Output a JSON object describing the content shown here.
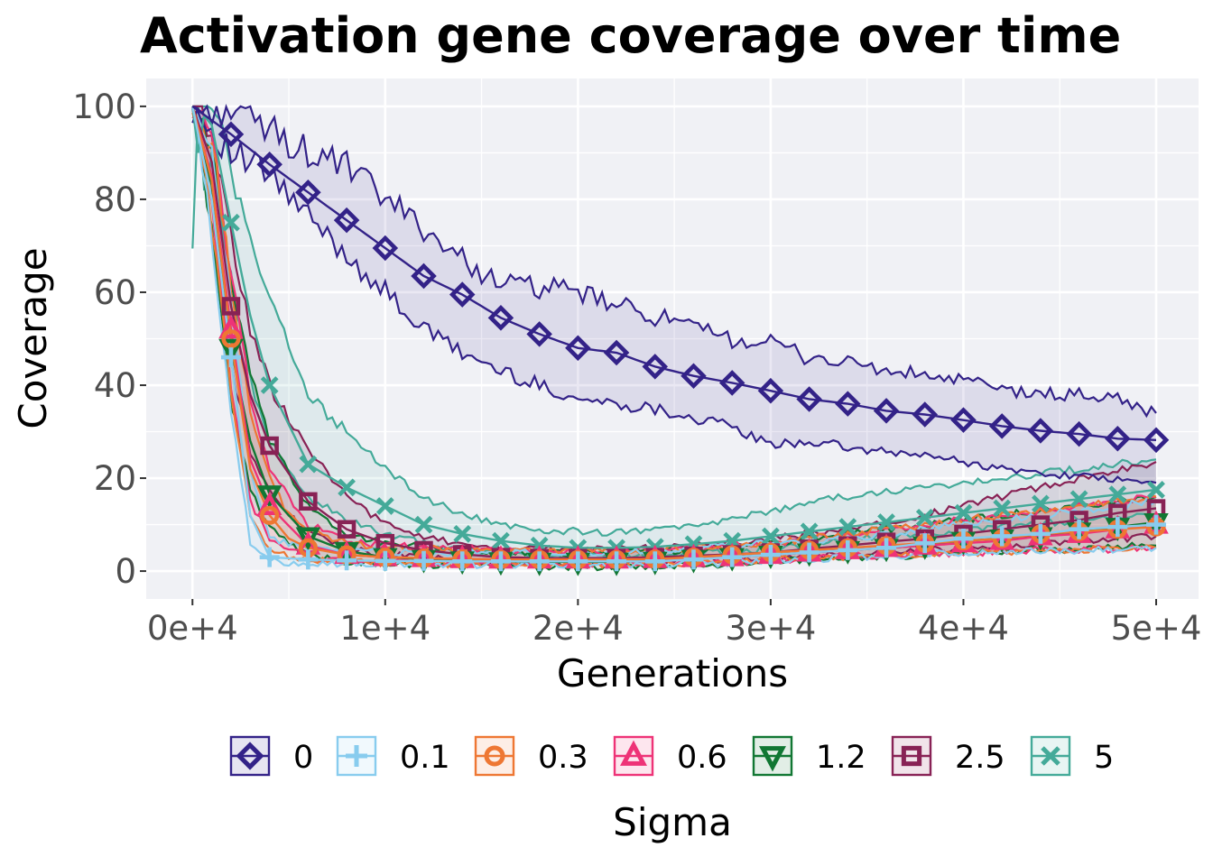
{
  "chart_data": {
    "type": "line",
    "title": "Activation gene coverage over time",
    "xlabel": "Generations",
    "ylabel": "Coverage",
    "xlim": [
      -2400,
      52200
    ],
    "ylim": [
      -6,
      106
    ],
    "x_ticks": [
      0,
      10000,
      20000,
      30000,
      40000,
      50000
    ],
    "x_tick_labels": [
      "0e+4",
      "1e+4",
      "2e+4",
      "3e+4",
      "4e+4",
      "5e+4"
    ],
    "y_ticks": [
      0,
      20,
      40,
      60,
      80,
      100
    ],
    "y_tick_labels": [
      "0",
      "20",
      "40",
      "60",
      "80",
      "100"
    ],
    "grid": true,
    "legend": {
      "title": "Sigma",
      "placement": "bottom"
    },
    "series": [
      {
        "name": "0",
        "color": "#332288",
        "marker": "diamond",
        "x": [
          0,
          2000,
          4000,
          6000,
          8000,
          10000,
          12000,
          14000,
          16000,
          18000,
          20000,
          22000,
          24000,
          26000,
          28000,
          30000,
          32000,
          34000,
          36000,
          38000,
          40000,
          42000,
          44000,
          46000,
          48000,
          50000
        ],
        "median": [
          100,
          94,
          87.5,
          81.5,
          75.5,
          69.5,
          63.5,
          59.5,
          54.5,
          51,
          48,
          47,
          44,
          42,
          40.5,
          38.8,
          37,
          36,
          34.5,
          33.7,
          32.5,
          31.2,
          30.2,
          29.5,
          28.5,
          28.2
        ],
        "lower": [
          100,
          90,
          85,
          76,
          68,
          60,
          52,
          47,
          43,
          40,
          37,
          36,
          35,
          33,
          31,
          27,
          28,
          26.5,
          25.5,
          25,
          23.5,
          22,
          21,
          20.5,
          19.5,
          19
        ],
        "upper": [
          100,
          99.5,
          95,
          90,
          87,
          80,
          74,
          67,
          62,
          61,
          60,
          57,
          55,
          52,
          50,
          49,
          46,
          45,
          43,
          42,
          41,
          39,
          38,
          38,
          37,
          34
        ]
      },
      {
        "name": "0.1",
        "color": "#88ccee",
        "marker": "plus",
        "x": [
          0,
          1000,
          2000,
          3000,
          4000,
          6000,
          8000,
          10000,
          12000,
          14000,
          16000,
          18000,
          20000,
          22000,
          24000,
          26000,
          28000,
          30000,
          32000,
          34000,
          36000,
          38000,
          40000,
          42000,
          44000,
          46000,
          48000,
          50000
        ],
        "median": [
          100,
          80,
          46,
          12,
          3,
          2.5,
          2.3,
          2.2,
          2.2,
          2.1,
          2.1,
          2.1,
          2.1,
          2.1,
          2.1,
          2.5,
          3,
          3.5,
          4,
          4.5,
          5,
          6,
          7,
          7.5,
          8,
          9,
          9.5,
          10
        ],
        "lower": [
          100,
          72,
          35,
          6,
          2,
          1.8,
          1.6,
          1.5,
          1.5,
          1.4,
          1.4,
          1.4,
          1.4,
          1.4,
          1.4,
          1.5,
          1.8,
          2.2,
          2.6,
          3,
          3.3,
          3.6,
          3.8,
          4,
          4.2,
          4.5,
          4.8,
          5
        ],
        "upper": [
          100,
          88,
          58,
          22,
          7,
          5,
          4.5,
          4.2,
          4,
          4,
          4,
          4,
          4,
          4,
          4.2,
          5,
          5.5,
          6,
          6.5,
          7,
          8,
          9,
          10,
          11,
          12,
          13,
          14,
          15
        ]
      },
      {
        "name": "0.3",
        "color": "#ee7733",
        "marker": "circle",
        "x": [
          0,
          1000,
          2000,
          3000,
          4000,
          5000,
          6000,
          8000,
          10000,
          12000,
          14000,
          16000,
          18000,
          20000,
          22000,
          24000,
          26000,
          28000,
          30000,
          32000,
          34000,
          36000,
          38000,
          40000,
          42000,
          44000,
          46000,
          48000,
          50000
        ],
        "median": [
          100,
          84,
          50,
          22,
          12,
          7,
          5,
          3.5,
          3,
          2.8,
          2.6,
          2.5,
          2.5,
          2.5,
          2.5,
          2.6,
          3,
          3.5,
          4,
          4.5,
          5,
          5.5,
          6,
          6.5,
          7,
          8,
          8.5,
          9,
          9.5
        ],
        "lower": [
          100,
          76,
          38,
          12,
          5,
          3,
          2.5,
          2,
          1.8,
          1.6,
          1.5,
          1.5,
          1.5,
          1.5,
          1.5,
          1.6,
          1.8,
          2,
          2.4,
          2.8,
          3.2,
          3.5,
          3.8,
          4,
          4.2,
          4.4,
          4.6,
          4.8,
          5
        ],
        "upper": [
          100,
          92,
          62,
          35,
          20,
          12,
          9,
          6,
          5,
          4.8,
          4.5,
          4.4,
          4.3,
          4.3,
          4.3,
          4.5,
          5,
          5.5,
          6,
          7,
          8,
          9,
          10,
          11,
          12,
          13,
          14,
          15,
          16
        ]
      },
      {
        "name": "0.6",
        "color": "#ee3377",
        "marker": "triangle-up",
        "x": [
          0,
          1000,
          2000,
          3000,
          4000,
          6000,
          8000,
          10000,
          12000,
          14000,
          16000,
          18000,
          20000,
          22000,
          24000,
          26000,
          28000,
          30000,
          32000,
          34000,
          36000,
          38000,
          40000,
          42000,
          44000,
          46000,
          48000,
          50000
        ],
        "median": [
          100,
          85,
          52,
          24,
          14,
          5.5,
          3.5,
          3,
          2.8,
          2.6,
          2.5,
          2.5,
          2.5,
          2.5,
          2.6,
          2.8,
          3,
          3.5,
          4,
          4.5,
          5,
          5.5,
          6,
          6.5,
          7.5,
          8,
          9,
          10
        ],
        "lower": [
          100,
          78,
          40,
          15,
          7,
          3,
          2.2,
          2,
          1.8,
          1.6,
          1.5,
          1.5,
          1.5,
          1.5,
          1.6,
          1.8,
          2,
          2.4,
          2.8,
          3.2,
          3.5,
          3.8,
          4,
          4.2,
          4.4,
          4.6,
          4.8,
          5
        ],
        "upper": [
          100,
          93,
          64,
          38,
          22,
          10,
          6.5,
          5.5,
          5,
          4.8,
          4.5,
          4.4,
          4.3,
          4.3,
          4.5,
          5,
          5.5,
          6,
          7,
          8,
          9,
          10,
          11,
          12,
          13,
          14,
          15,
          16
        ]
      },
      {
        "name": "1.2",
        "color": "#117733",
        "marker": "triangle-down",
        "x": [
          0,
          1000,
          2000,
          3000,
          4000,
          6000,
          8000,
          10000,
          12000,
          14000,
          16000,
          18000,
          20000,
          22000,
          24000,
          26000,
          28000,
          30000,
          32000,
          34000,
          36000,
          38000,
          40000,
          42000,
          44000,
          46000,
          48000,
          50000
        ],
        "median": [
          100,
          83,
          48,
          28,
          16.5,
          7.5,
          4.3,
          3,
          2.6,
          2.3,
          2.1,
          2,
          2,
          2,
          2.2,
          2.6,
          3,
          3.5,
          4,
          4.5,
          5,
          5.5,
          6.5,
          7,
          7.5,
          8.5,
          9.5,
          10.5
        ],
        "lower": [
          100,
          75,
          36,
          18,
          9,
          3.5,
          2,
          1.5,
          1.3,
          1.2,
          1.1,
          1,
          1,
          1,
          1.1,
          1.3,
          1.6,
          2,
          2.4,
          2.8,
          3.2,
          3.5,
          3.8,
          4.2,
          4.5,
          4.8,
          5.2,
          5.5
        ],
        "upper": [
          100,
          92,
          62,
          42,
          28,
          14,
          8,
          6,
          5,
          4.5,
          4.2,
          4,
          4,
          4,
          4.2,
          4.6,
          5.2,
          6,
          7,
          8,
          9,
          10,
          11,
          12,
          13,
          14,
          15,
          16
        ]
      },
      {
        "name": "2.5",
        "color": "#882255",
        "marker": "square",
        "x": [
          0,
          1000,
          2000,
          3000,
          4000,
          6000,
          8000,
          10000,
          12000,
          14000,
          16000,
          18000,
          20000,
          22000,
          24000,
          26000,
          28000,
          30000,
          32000,
          34000,
          36000,
          38000,
          40000,
          42000,
          44000,
          46000,
          48000,
          50000
        ],
        "median": [
          100,
          88,
          57,
          38,
          27,
          15,
          9,
          6,
          4.5,
          3.6,
          3,
          2.8,
          2.8,
          2.8,
          3,
          3.3,
          3.6,
          4,
          4.8,
          5.5,
          6.3,
          7,
          8,
          9,
          10,
          11,
          12.5,
          13.5
        ],
        "lower": [
          100,
          80,
          44,
          26,
          17,
          8,
          5,
          3.5,
          2.8,
          2.3,
          2,
          1.9,
          1.9,
          1.9,
          2,
          2.2,
          2.5,
          2.8,
          3.2,
          3.6,
          4,
          4.5,
          5,
          5.5,
          6,
          6.5,
          7,
          7.5
        ],
        "upper": [
          100,
          95,
          72,
          52,
          40,
          26,
          16,
          10,
          7,
          6,
          5,
          4.7,
          4.7,
          4.7,
          5,
          5.5,
          6,
          7,
          8,
          9,
          10.5,
          12,
          14,
          16,
          18,
          20,
          22,
          23.5
        ]
      },
      {
        "name": "5",
        "color": "#44aa99",
        "marker": "cross",
        "x": [
          0,
          300,
          600,
          1000,
          2000,
          3000,
          4000,
          6000,
          8000,
          10000,
          12000,
          14000,
          16000,
          18000,
          20000,
          22000,
          24000,
          26000,
          28000,
          30000,
          32000,
          34000,
          36000,
          38000,
          40000,
          42000,
          44000,
          46000,
          48000,
          50000
        ],
        "median": [
          100,
          90,
          98,
          96,
          75,
          55,
          40,
          23,
          18,
          14,
          10,
          8,
          6.5,
          5.5,
          5,
          5,
          5.2,
          5.8,
          6.5,
          7.5,
          8.5,
          9.5,
          10.5,
          11.5,
          12.5,
          13.5,
          14.5,
          15.5,
          16.5,
          17.5
        ],
        "lower": [
          68,
          100,
          82,
          88,
          62,
          42,
          27,
          16,
          11,
          8,
          6,
          4.7,
          4,
          3.5,
          3.2,
          3.2,
          3.4,
          3.8,
          4.2,
          5,
          5.8,
          6.6,
          7.4,
          8,
          8.8,
          9.5,
          10.2,
          11,
          11.5,
          12
        ],
        "upper": [
          100,
          100,
          100,
          100,
          88,
          70,
          58,
          38,
          30,
          22,
          16,
          12,
          10,
          9,
          8.5,
          8.3,
          8.8,
          9.5,
          11,
          13,
          15,
          16,
          17,
          18,
          19,
          20,
          21,
          22,
          23,
          24
        ]
      }
    ]
  }
}
